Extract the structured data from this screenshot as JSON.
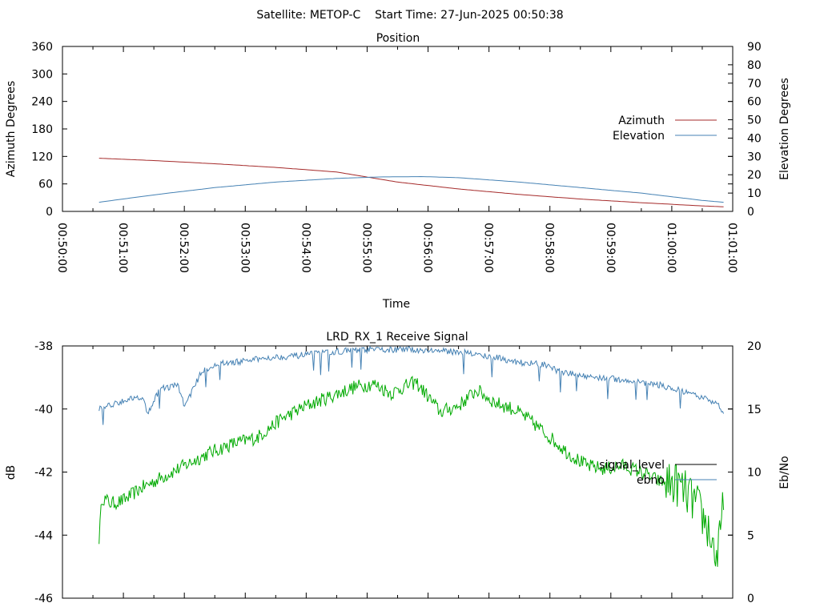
{
  "header": {
    "title": "Satellite: METOP-C    Start Time: 27-Jun-2025 00:50:38"
  },
  "chart_data": [
    {
      "type": "line",
      "title": "Position",
      "xlabel": "Time",
      "ylabel": "Azimuth Degrees",
      "y2label": "Elevation Degrees",
      "x_ticks": [
        "00:50:00",
        "00:51:00",
        "00:52:00",
        "00:53:00",
        "00:54:00",
        "00:55:00",
        "00:56:00",
        "00:57:00",
        "00:58:00",
        "00:59:00",
        "01:00:00",
        "01:01:00"
      ],
      "xlim_minutes": [
        0,
        11
      ],
      "ylim": [
        0,
        360
      ],
      "y_ticks": [
        0,
        60,
        120,
        180,
        240,
        300,
        360
      ],
      "y2lim": [
        0,
        90
      ],
      "y2_ticks": [
        0,
        10,
        20,
        30,
        40,
        50,
        60,
        70,
        80,
        90
      ],
      "legend_position": "right",
      "series": [
        {
          "name": "Azimuth",
          "axis": "y",
          "color": "#a52a2a",
          "x_minutes": [
            0.6,
            1.5,
            2.5,
            3.5,
            4.5,
            5.0,
            5.5,
            6.5,
            7.5,
            8.5,
            9.5,
            10.5,
            10.85
          ],
          "values": [
            116,
            111,
            104,
            96,
            86,
            75,
            64,
            49,
            37,
            27,
            19,
            12,
            10
          ]
        },
        {
          "name": "Elevation",
          "axis": "y2",
          "color": "#4682b4",
          "x_minutes": [
            0.6,
            1.5,
            2.5,
            3.5,
            4.5,
            5.2,
            5.9,
            6.5,
            7.5,
            8.5,
            9.5,
            10.5,
            10.85
          ],
          "values": [
            5,
            9,
            13,
            16,
            18,
            18.8,
            19,
            18.4,
            16,
            13,
            10,
            6,
            5
          ]
        }
      ]
    },
    {
      "type": "line",
      "title": "LRD_RX_1 Receive Signal",
      "ylabel": "dB",
      "y2label": "Eb/No",
      "xlim_minutes": [
        0,
        11
      ],
      "ylim": [
        -46,
        -38
      ],
      "y_ticks": [
        -46,
        -44,
        -42,
        -40,
        -38
      ],
      "y2lim": [
        0,
        20
      ],
      "y2_ticks": [
        0,
        5,
        10,
        15,
        20
      ],
      "legend_position": "right",
      "series": [
        {
          "name": "signal_level",
          "axis": "y",
          "color": "#00aa00",
          "legend_color": "#000000",
          "x_minutes": [
            0.6,
            0.65,
            0.8,
            1.0,
            1.3,
            1.6,
            2.0,
            2.4,
            2.8,
            3.2,
            3.6,
            4.0,
            4.4,
            4.8,
            5.1,
            5.4,
            5.6,
            5.8,
            6.0,
            6.2,
            6.5,
            6.8,
            7.1,
            7.4,
            7.7,
            8.0,
            8.3,
            8.6,
            8.9,
            9.2,
            9.5,
            9.8,
            10.1,
            10.4,
            10.6,
            10.75,
            10.85
          ],
          "values": [
            -44.1,
            -42.8,
            -43.0,
            -42.9,
            -42.5,
            -42.2,
            -41.8,
            -41.4,
            -41.1,
            -40.9,
            -40.3,
            -39.9,
            -39.6,
            -39.3,
            -39.2,
            -39.5,
            -39.3,
            -39.15,
            -39.6,
            -40.1,
            -39.9,
            -39.4,
            -39.8,
            -40.0,
            -40.4,
            -40.9,
            -41.4,
            -41.8,
            -41.9,
            -41.8,
            -42.0,
            -42.3,
            -42.4,
            -43.0,
            -43.8,
            -44.8,
            -43.0
          ]
        },
        {
          "name": "ebno",
          "axis": "y2",
          "color": "#4682b4",
          "x_minutes": [
            0.6,
            0.8,
            1.0,
            1.3,
            1.4,
            1.6,
            1.9,
            2.0,
            2.3,
            2.6,
            3.0,
            3.4,
            3.8,
            4.2,
            4.6,
            5.0,
            5.4,
            5.8,
            6.2,
            6.6,
            6.8,
            7.1,
            7.5,
            7.9,
            8.2,
            8.6,
            9.0,
            9.4,
            9.8,
            10.1,
            10.4,
            10.7,
            10.85
          ],
          "values": [
            15.1,
            15.3,
            15.7,
            16.0,
            14.7,
            16.6,
            16.9,
            15.2,
            18.1,
            18.6,
            18.8,
            19.1,
            19.2,
            19.4,
            19.6,
            19.7,
            19.7,
            19.7,
            19.6,
            19.5,
            19.3,
            19.1,
            18.7,
            18.5,
            17.9,
            17.6,
            17.4,
            17.2,
            16.9,
            16.5,
            16.0,
            15.6,
            14.8
          ]
        }
      ]
    }
  ]
}
